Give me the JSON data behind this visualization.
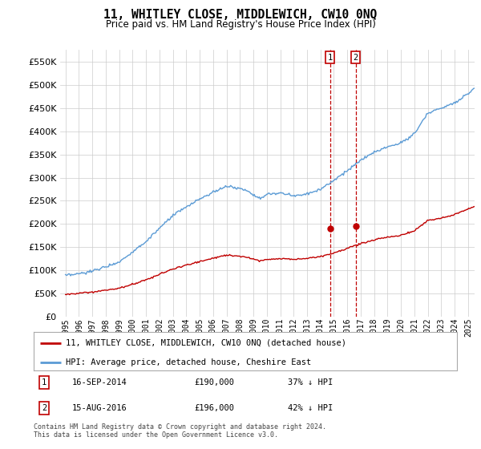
{
  "title": "11, WHITLEY CLOSE, MIDDLEWICH, CW10 0NQ",
  "subtitle": "Price paid vs. HM Land Registry's House Price Index (HPI)",
  "legend_line1": "11, WHITLEY CLOSE, MIDDLEWICH, CW10 0NQ (detached house)",
  "legend_line2": "HPI: Average price, detached house, Cheshire East",
  "footer": "Contains HM Land Registry data © Crown copyright and database right 2024.\nThis data is licensed under the Open Government Licence v3.0.",
  "transactions": [
    {
      "id": 1,
      "date": "16-SEP-2014",
      "price": "£190,000",
      "pct": "37% ↓ HPI",
      "year": 2014.71,
      "price_val": 190000
    },
    {
      "id": 2,
      "date": "15-AUG-2016",
      "price": "£196,000",
      "pct": "42% ↓ HPI",
      "year": 2016.62,
      "price_val": 196000
    }
  ],
  "hpi_color": "#5b9bd5",
  "price_color": "#c00000",
  "vline_color": "#c00000",
  "ylim": [
    0,
    577000
  ],
  "yticks": [
    0,
    50000,
    100000,
    150000,
    200000,
    250000,
    300000,
    350000,
    400000,
    450000,
    500000,
    550000
  ],
  "xmin": 1995.0,
  "xmax": 2025.5,
  "background_color": "#ffffff",
  "grid_color": "#cccccc",
  "transaction_box_color": "#c00000",
  "legend_border_color": "#aaaaaa",
  "title_fontsize": 10.5,
  "subtitle_fontsize": 8.5
}
